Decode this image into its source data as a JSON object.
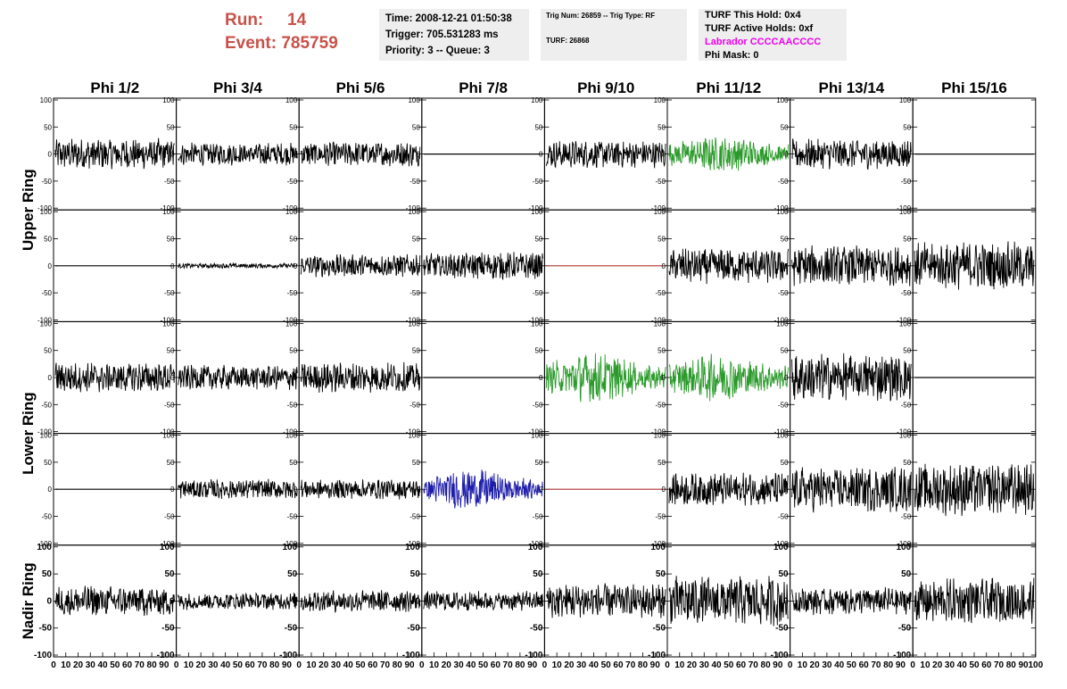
{
  "header": {
    "run_label": "Run:",
    "run_value": "14",
    "event_label": "Event:",
    "event_value": "785759"
  },
  "info_box_1": {
    "time": "Time: 2008-12-21 01:50:38",
    "trigger": "Trigger: 705.531283 ms",
    "priority": "Priority: 3 -- Queue: 3"
  },
  "info_box_2": {
    "trig": "Trig Num: 26859 -- Trig Type: RF",
    "turf": "TURF: 26868"
  },
  "info_box_3": {
    "this_hold": "TURF This Hold: 0x4",
    "active_holds": "TURF Active Holds: 0xf",
    "labrador": "Labrador CCCCAACCCC",
    "phi_mask": "Phi Mask: 0"
  },
  "chart_data": {
    "type": "line",
    "columns": [
      "Phi 1/2",
      "Phi 3/4",
      "Phi 5/6",
      "Phi 7/8",
      "Phi 9/10",
      "Phi 11/12",
      "Phi 13/14",
      "Phi 15/16"
    ],
    "ring_labels": [
      "Upper Ring",
      "Lower Ring",
      "Nadir Ring"
    ],
    "ylim": [
      -100,
      100
    ],
    "xlim": [
      0,
      100
    ],
    "y_ticks": [
      "100",
      "50",
      "0",
      "-50",
      "-100"
    ],
    "x_ticks": [
      "0",
      "10",
      "20",
      "30",
      "40",
      "50",
      "60",
      "70",
      "80",
      "90",
      "100"
    ],
    "grid": false,
    "colors": {
      "black": "#000000",
      "green": "#2a9a2a",
      "blue": "#1d1daa",
      "red": "#b03030"
    },
    "rows": [
      [
        {
          "amp": 25,
          "color": "black"
        },
        {
          "amp": 18,
          "color": "black"
        },
        {
          "amp": 20,
          "color": "black"
        },
        {
          "amp": 0,
          "color": "black"
        },
        {
          "amp": 22,
          "color": "black"
        },
        {
          "amp": 25,
          "color": "green"
        },
        {
          "amp": 24,
          "color": "black"
        },
        {
          "amp": 0,
          "color": "black"
        }
      ],
      [
        {
          "amp": 0,
          "color": "black"
        },
        {
          "amp": 4,
          "color": "black"
        },
        {
          "amp": 18,
          "color": "black"
        },
        {
          "amp": 22,
          "color": "black"
        },
        {
          "amp": 0,
          "color": "red"
        },
        {
          "amp": 28,
          "color": "black"
        },
        {
          "amp": 32,
          "color": "black"
        },
        {
          "amp": 38,
          "color": "black"
        }
      ],
      [
        {
          "amp": 24,
          "color": "black"
        },
        {
          "amp": 20,
          "color": "black"
        },
        {
          "amp": 24,
          "color": "black"
        },
        {
          "amp": 0,
          "color": "black"
        },
        {
          "amp": 32,
          "color": "green"
        },
        {
          "amp": 30,
          "color": "green"
        },
        {
          "amp": 38,
          "color": "black"
        },
        {
          "amp": 0,
          "color": "black"
        }
      ],
      [
        {
          "amp": 0,
          "color": "black"
        },
        {
          "amp": 16,
          "color": "black"
        },
        {
          "amp": 16,
          "color": "black"
        },
        {
          "amp": 26,
          "color": "blue"
        },
        {
          "amp": 0,
          "color": "red"
        },
        {
          "amp": 26,
          "color": "black"
        },
        {
          "amp": 36,
          "color": "black"
        },
        {
          "amp": 42,
          "color": "black"
        }
      ],
      [
        {
          "amp": 24,
          "color": "black"
        },
        {
          "amp": 14,
          "color": "black"
        },
        {
          "amp": 18,
          "color": "black"
        },
        {
          "amp": 16,
          "color": "black"
        },
        {
          "amp": 28,
          "color": "black"
        },
        {
          "amp": 40,
          "color": "black"
        },
        {
          "amp": 22,
          "color": "black"
        },
        {
          "amp": 36,
          "color": "black"
        }
      ]
    ]
  }
}
